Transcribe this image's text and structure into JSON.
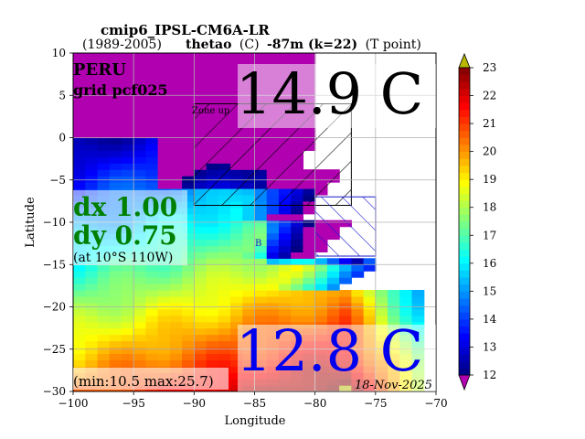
{
  "header": {
    "title": "cmip6_IPSL-CM6A-LR",
    "period": "(1989-2005)",
    "variable": "thetao",
    "unit": "(C)",
    "depth": "-87m (k=22)",
    "point": "(T point)"
  },
  "annotations": {
    "region": "PERU",
    "grid": "grid pcf025",
    "zone_label": "Zone up",
    "zone_b_label": "B",
    "value_upper": "14.9 C",
    "value_lower": "12.8 C",
    "dx": "dx 1.00",
    "dy": "dy 0.75",
    "at": "(at 10°S 110W)",
    "minmax": "(min:10.5 max:25.7)",
    "date": "18-Nov-2025"
  },
  "colors": {
    "upper_value": "#000000",
    "lower_value": "#0000ee",
    "dxdy": "#008000",
    "zone_up_hatch": "#000000",
    "zone_b_hatch": "#1a1acc",
    "land": "#ffffff"
  },
  "chart_data": {
    "type": "heatmap",
    "xlabel": "Longitude",
    "ylabel": "Latitude",
    "xlim": [
      -100,
      -70
    ],
    "ylim": [
      -30,
      10
    ],
    "xticks": [
      -100,
      -95,
      -90,
      -85,
      -80,
      -75,
      -70
    ],
    "yticks": [
      10,
      5,
      0,
      -5,
      -10,
      -15,
      -20,
      -25,
      -30
    ],
    "grid": true,
    "colorbar": {
      "min": 12,
      "max": 23,
      "ticks": [
        12,
        13,
        14,
        15,
        16,
        17,
        18,
        19,
        20,
        21,
        22,
        23
      ],
      "extend": "both",
      "colormap": "jet"
    },
    "zones": [
      {
        "name": "Zone up",
        "lon": [
          -90,
          -77
        ],
        "lat": [
          -8,
          4
        ]
      },
      {
        "name": "B",
        "lon": [
          -80,
          -75
        ],
        "lat": [
          -14,
          -7
        ]
      }
    ]
  }
}
